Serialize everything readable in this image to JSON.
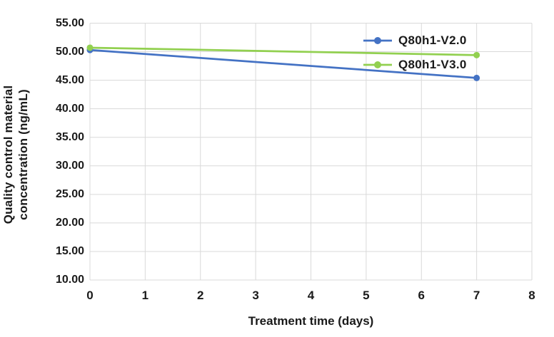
{
  "chart_data": {
    "type": "line",
    "title": "",
    "xlabel": "Treatment time (days)",
    "ylabel": "Quality control material concentration (ng/mL)",
    "ylabel_lines": [
      "Quality control material",
      "concentration (ng/mL)"
    ],
    "x": [
      0,
      7
    ],
    "series": [
      {
        "name": "Q80h1-V2.0",
        "color": "#4472C4",
        "values": [
          50.3,
          45.4
        ]
      },
      {
        "name": "Q80h1-V3.0",
        "color": "#92D050",
        "values": [
          50.7,
          49.4
        ]
      }
    ],
    "xlim": [
      0,
      8
    ],
    "xticks": [
      0,
      1,
      2,
      3,
      4,
      5,
      6,
      7,
      8
    ],
    "xtick_labels": [
      "0",
      "1",
      "2",
      "3",
      "4",
      "5",
      "6",
      "7",
      "8"
    ],
    "ylim": [
      10,
      55
    ],
    "yticks": [
      10,
      15,
      20,
      25,
      30,
      35,
      40,
      45,
      50,
      55
    ],
    "ytick_labels": [
      "10.00",
      "15.00",
      "20.00",
      "25.00",
      "30.00",
      "35.00",
      "40.00",
      "45.00",
      "50.00",
      "55.00"
    ],
    "grid": true,
    "legend_position": "inside-top-right",
    "style": {
      "gridline_color": "#D9D9D9",
      "axis_line_color": "#D0D0D0",
      "text_color": "#1A1A1A",
      "line_width": 2.75,
      "marker_radius": 4.5
    }
  }
}
